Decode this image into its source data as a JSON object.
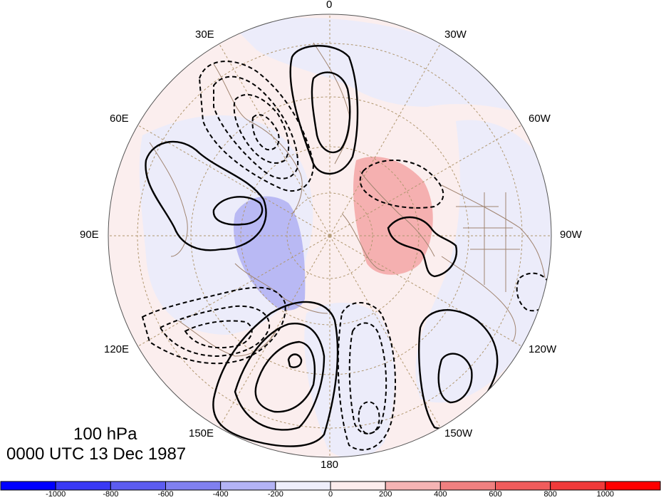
{
  "title": {
    "level": "100 hPa",
    "time": "0000 UTC 13 Dec 1987"
  },
  "longitude_labels": {
    "lon_0": "0",
    "lon_30w": "30W",
    "lon_60w": "60W",
    "lon_90w": "90W",
    "lon_120w": "120W",
    "lon_150w": "150W",
    "lon_180": "180",
    "lon_150e": "150E",
    "lon_120e": "120E",
    "lon_90e": "90E",
    "lon_60e": "60E",
    "lon_30e": "30E"
  },
  "colorbar": {
    "tick_labels": [
      "-1000",
      "-800",
      "-600",
      "-400",
      "-200",
      "0",
      "200",
      "400",
      "600",
      "800",
      "1000"
    ],
    "colors": [
      "#0000ff",
      "#3939f5",
      "#5c5cf0",
      "#8080f0",
      "#b3b3f5",
      "#eeeefb",
      "#fcecec",
      "#f5b4b4",
      "#f08080",
      "#f05c5c",
      "#f03a3a",
      "#ff0000"
    ]
  },
  "map": {
    "projection": "north-polar-stereographic",
    "shading_colors": {
      "negative_light": "#ececfa",
      "positive_light": "#fbeeee",
      "negative_strong": "#b9b9f4",
      "positive_strong": "#f5b0b0"
    },
    "coastline_color": "#a08470",
    "grid_color": "#b0976f",
    "contour_color": "#000000"
  }
}
